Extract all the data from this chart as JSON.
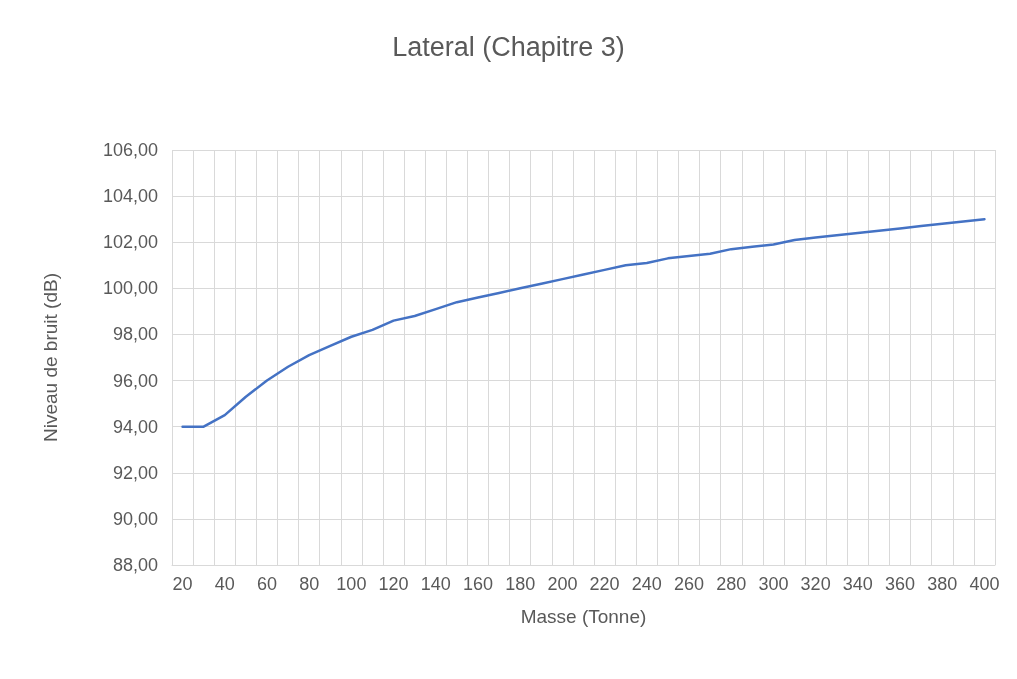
{
  "chart_data": {
    "type": "line",
    "title": "Lateral (Chapitre 3)",
    "xlabel": "Masse (Tonne)",
    "ylabel": "Niveau de bruit (dB)",
    "categories": [
      "20",
      null,
      "40",
      null,
      "60",
      null,
      "80",
      null,
      "100",
      null,
      "120",
      null,
      "140",
      null,
      "160",
      null,
      "180",
      null,
      "200",
      null,
      "220",
      null,
      "240",
      null,
      "260",
      null,
      "280",
      null,
      "300",
      null,
      "320",
      null,
      "340",
      null,
      "360",
      null,
      "380",
      null,
      "400"
    ],
    "series": [
      {
        "color": "#4472c4",
        "values": [
          94.0,
          94.0,
          94.5,
          95.3,
          96.0,
          96.6,
          97.1,
          97.5,
          97.9,
          98.2,
          98.6,
          98.8,
          99.1,
          99.4,
          99.6,
          99.8,
          100.0,
          100.2,
          100.4,
          100.6,
          100.8,
          101.0,
          101.1,
          101.3,
          101.4,
          101.5,
          101.7,
          101.8,
          101.9,
          102.1,
          102.2,
          102.3,
          102.4,
          102.5,
          102.6,
          102.7,
          102.8,
          102.9,
          103.0
        ]
      }
    ],
    "ylim": [
      88,
      106
    ],
    "yticks": [
      {
        "value": 88,
        "label": "88,00"
      },
      {
        "value": 90,
        "label": "90,00"
      },
      {
        "value": 92,
        "label": "92,00"
      },
      {
        "value": 94,
        "label": "94,00"
      },
      {
        "value": 96,
        "label": "96,00"
      },
      {
        "value": 98,
        "label": "98,00"
      },
      {
        "value": 100,
        "label": "100,00"
      },
      {
        "value": 102,
        "label": "102,00"
      },
      {
        "value": 104,
        "label": "104,00"
      },
      {
        "value": 106,
        "label": "106,00"
      }
    ],
    "grid": true,
    "marker": "none",
    "line_style": "solid"
  }
}
